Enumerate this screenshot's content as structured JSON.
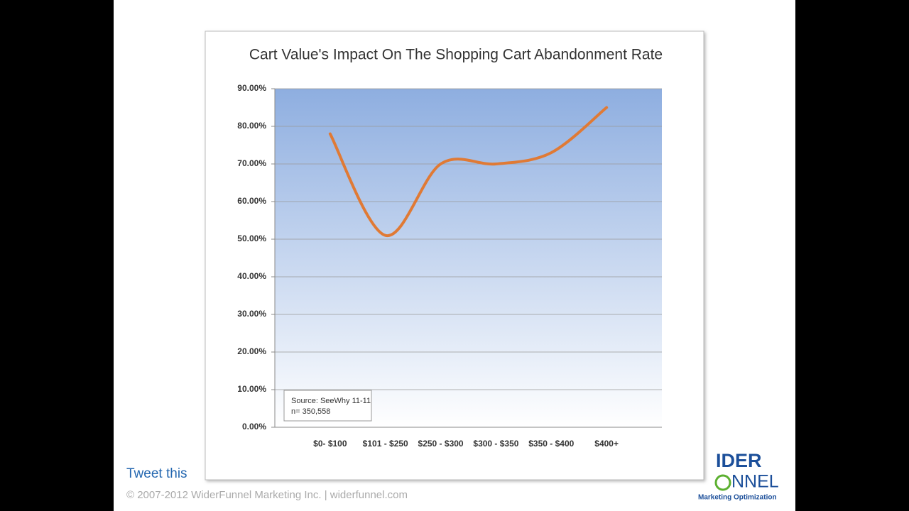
{
  "chart_data": {
    "type": "line",
    "title": "Cart Value's Impact On The Shopping Cart Abandonment Rate",
    "categories": [
      "$0- $100",
      "$101 - $250",
      "$250 - $300",
      "$300 - $350",
      "$350 - $400",
      "$400+"
    ],
    "values": [
      78,
      51,
      70,
      70,
      73,
      85
    ],
    "color": "#e07a35",
    "smooth": true,
    "ylim": [
      0,
      90
    ],
    "yticks": [
      {
        "value": 0,
        "label": "0.00%"
      },
      {
        "value": 10,
        "label": "10.00%"
      },
      {
        "value": 20,
        "label": "20.00%"
      },
      {
        "value": 30,
        "label": "30.00%"
      },
      {
        "value": 40,
        "label": "40.00%"
      },
      {
        "value": 50,
        "label": "50.00%"
      },
      {
        "value": 60,
        "label": "60.00%"
      },
      {
        "value": 70,
        "label": "70.00%"
      },
      {
        "value": 80,
        "label": "80.00%"
      },
      {
        "value": 90,
        "label": "90.00%"
      }
    ],
    "grid": true,
    "annotations": [
      "Source: SeeWhy 11-11",
      "n= 350,558"
    ]
  },
  "footer": {
    "link": "Tweet this",
    "copyright": "© 2007-2012 WiderFunnel Marketing Inc.  |  widerfunnel.com"
  },
  "logo": {
    "top": "IDER",
    "bottom": "NNEL",
    "tagline": "Marketing Optimization"
  }
}
